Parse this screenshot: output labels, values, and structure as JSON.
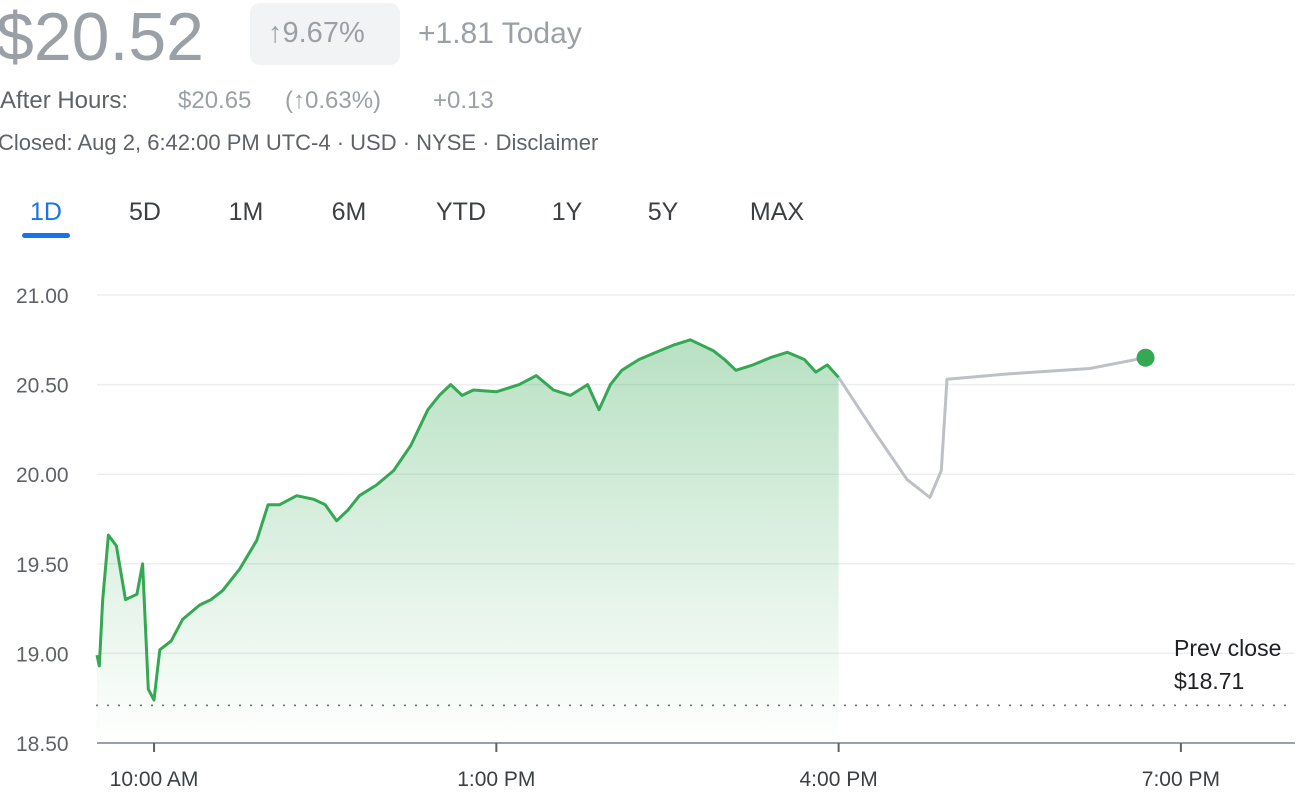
{
  "header": {
    "price": "$20.52",
    "change_pct": "↑9.67%",
    "change": "+1.81 Today",
    "after_hours": {
      "label": "After Hours:",
      "price": "$20.65",
      "change_pct": "(↑0.63%)",
      "change": "+0.13"
    },
    "status": "Closed: Aug 2, 6:42:00 PM UTC-4 · USD · NYSE · Disclaimer"
  },
  "tabs": [
    "1D",
    "5D",
    "1M",
    "6M",
    "YTD",
    "1Y",
    "5Y",
    "MAX"
  ],
  "chart_data": {
    "type": "line",
    "xlim": [
      9.5,
      20
    ],
    "ylim": [
      18.5,
      21
    ],
    "xticks": [
      {
        "value": 10,
        "label": "10:00 AM"
      },
      {
        "value": 13,
        "label": "1:00 PM"
      },
      {
        "value": 16,
        "label": "4:00 PM"
      },
      {
        "value": 19,
        "label": "7:00 PM"
      }
    ],
    "yticks": [
      {
        "value": 18.5,
        "label": "18.50"
      },
      {
        "value": 19,
        "label": "19.00"
      },
      {
        "value": 19.5,
        "label": "19.50"
      },
      {
        "value": 20,
        "label": "20.00"
      },
      {
        "value": 20.5,
        "label": "20.50"
      },
      {
        "value": 21,
        "label": "21.00"
      }
    ],
    "grid": true,
    "series": [
      {
        "color": "#34a853",
        "fill": true,
        "x": [
          9.5,
          9.52,
          9.55,
          9.6,
          9.67,
          9.75,
          9.85,
          9.9,
          9.95,
          10.0,
          10.05,
          10.15,
          10.25,
          10.4,
          10.5,
          10.6,
          10.75,
          10.9,
          11.0,
          11.1,
          11.25,
          11.4,
          11.5,
          11.6,
          11.7,
          11.8,
          11.95,
          12.1,
          12.25,
          12.4,
          12.5,
          12.6,
          12.7,
          12.8,
          13.0,
          13.2,
          13.35,
          13.5,
          13.65,
          13.8,
          13.9,
          14.0,
          14.1,
          14.25,
          14.4,
          14.55,
          14.7,
          14.8,
          14.9,
          15.0,
          15.1,
          15.25,
          15.4,
          15.55,
          15.7,
          15.8,
          15.9,
          16.0
        ],
        "values": [
          18.99,
          18.93,
          19.3,
          19.66,
          19.6,
          19.3,
          19.33,
          19.5,
          18.8,
          18.74,
          19.02,
          19.07,
          19.19,
          19.27,
          19.3,
          19.35,
          19.47,
          19.63,
          19.83,
          19.83,
          19.88,
          19.86,
          19.83,
          19.74,
          19.8,
          19.88,
          19.94,
          20.02,
          20.16,
          20.36,
          20.44,
          20.5,
          20.44,
          20.47,
          20.46,
          20.5,
          20.55,
          20.47,
          20.44,
          20.5,
          20.36,
          20.5,
          20.58,
          20.64,
          20.68,
          20.72,
          20.75,
          20.72,
          20.69,
          20.64,
          20.58,
          20.61,
          20.65,
          20.68,
          20.64,
          20.57,
          20.61,
          20.54
        ]
      },
      {
        "color": "#bdc1c6",
        "fill": false,
        "end_dot_color": "#34a853",
        "x": [
          16.0,
          16.3,
          16.6,
          16.8,
          16.9,
          16.95,
          17.5,
          18.2,
          18.69
        ],
        "values": [
          20.54,
          20.25,
          19.97,
          19.87,
          20.02,
          20.53,
          20.56,
          20.59,
          20.65
        ]
      }
    ],
    "prev_close": {
      "label": "Prev close",
      "value_label": "$18.71",
      "value": 18.71
    }
  }
}
